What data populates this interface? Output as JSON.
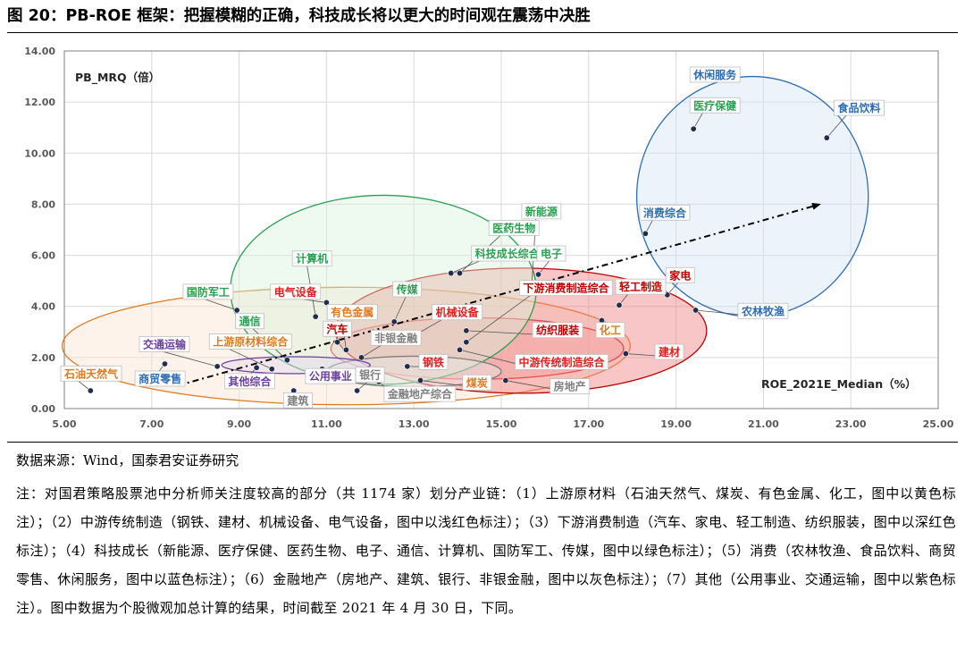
{
  "figure": {
    "title": "图 20：PB-ROE 框架：把握模糊的正确，科技成长将以更大的时间观在震荡中决胜",
    "source": "数据来源：Wind，国泰君安证券研究",
    "note": "注：对国君策略股票池中分析师关注度较高的部分（共 1174 家）划分产业链：（1）上游原材料（石油天然气、煤炭、有色金属、化工，图中以黄色标注）；（2）中游传统制造（钢铁、建材、机械设备、电气设备，图中以浅红色标注）；（3）下游消费制造（汽车、家电、轻工制造、纺织服装，图中以深红色标注）；（4）科技成长（新能源、医疗保健、医药生物、电子、通信、计算机、国防军工、传媒，图中以绿色标注）；（5）消费（农林牧渔、食品饮料、商贸零售、休闲服务，图中以蓝色标注）；（6）金融地产（房地产、建筑、银行、非银金融，图中以灰色标注）；（7）其他（公用事业、交通运输，图中以紫色标注）。图中数据为个股微观加总计算的结果，时间截至 2021 年 4 月 30 日，下同。"
  },
  "colors": {
    "upstream": "#E07A1F",
    "midstream": "#E02020",
    "downstream": "#C00000",
    "tech": "#2AA050",
    "consumer": "#2E6DB4",
    "finance": "#7F7F7F",
    "other": "#6B3FA0",
    "point": "#1F2D4E",
    "grid": "#D9D9D9",
    "axis": "#7F7F7F"
  },
  "chart_data": {
    "type": "scatter",
    "title": "PB-ROE 框架",
    "xlabel": "ROE_2021E_Median（%）",
    "ylabel": "PB_MRQ（倍）",
    "xlim": [
      5,
      25
    ],
    "ylim": [
      0,
      14
    ],
    "xticks": [
      "5.00",
      "7.00",
      "9.00",
      "11.00",
      "13.00",
      "15.00",
      "17.00",
      "19.00",
      "21.00",
      "23.00",
      "25.00"
    ],
    "yticks": [
      "0.00",
      "2.00",
      "4.00",
      "6.00",
      "8.00",
      "10.00",
      "12.00",
      "14.00"
    ],
    "grid": true,
    "trend_arrow": {
      "from": [
        7.6,
        0.9
      ],
      "to": [
        22.3,
        8.0
      ]
    },
    "groups": [
      {
        "name": "上游原材料",
        "color": "#E07A1F",
        "fill": "#FBE5D0",
        "ellipse": {
          "cx": 11.45,
          "cy": 2.45,
          "rx": 6.5,
          "ry": 2.3
        }
      },
      {
        "name": "中游传统制造",
        "color": "#E02020",
        "fill": "#F6B7B7",
        "ellipse": {
          "cx": 14.45,
          "cy": 2.35,
          "rx": 3.35,
          "ry": 1.2
        }
      },
      {
        "name": "下游消费制造",
        "color": "#C00000",
        "fill": "#F08080",
        "ellipse": {
          "cx": 15.45,
          "cy": 3.05,
          "rx": 4.25,
          "ry": 2.45
        }
      },
      {
        "name": "科技成长",
        "color": "#2AA050",
        "fill": "#D9F2DC",
        "ellipse": {
          "cx": 12.3,
          "cy": 4.65,
          "rx": 3.5,
          "ry": 3.7
        }
      },
      {
        "name": "消费",
        "color": "#2E6DB4",
        "fill": "#D6E4F5",
        "ellipse": {
          "cx": 20.75,
          "cy": 8.3,
          "rx": 2.65,
          "ry": 4.7
        }
      },
      {
        "name": "金融地产",
        "color": "#7F7F7F",
        "fill": "#E8E8E8",
        "ellipse": {
          "cx": 13.0,
          "cy": 1.45,
          "rx": 2.0,
          "ry": 0.6
        }
      },
      {
        "name": "其他",
        "color": "#6B3FA0",
        "fill": "#E2D8F0",
        "ellipse": {
          "cx": 10.3,
          "cy": 1.7,
          "rx": 1.7,
          "ry": 0.33
        }
      }
    ],
    "points": [
      {
        "name": "石油天然气",
        "x": 5.6,
        "y": 0.7,
        "group": "上游原材料",
        "label_xy": [
          5.0,
          1.25
        ],
        "color": "#E07A1F",
        "leader": true
      },
      {
        "name": "商贸零售",
        "x": 7.3,
        "y": 1.75,
        "group": "消费",
        "label_xy": [
          6.7,
          1.05
        ],
        "color": "#2E6DB4",
        "leader": true
      },
      {
        "name": "交通运输",
        "x": 8.5,
        "y": 1.65,
        "group": "其他",
        "label_xy": [
          6.8,
          2.4
        ],
        "color": "#6B3FA0",
        "leader": true
      },
      {
        "name": "其他综合",
        "x": 9.4,
        "y": 1.6,
        "group": "其他",
        "label_xy": [
          8.75,
          0.95
        ],
        "color": "#6B3FA0",
        "leader": true
      },
      {
        "name": "上游原材料综合",
        "x": 9.75,
        "y": 1.55,
        "group": "上游原材料",
        "label_xy": [
          8.4,
          2.5
        ],
        "color": "#E07A1F",
        "leader": true
      },
      {
        "name": "通信",
        "x": 10.1,
        "y": 1.9,
        "group": "科技成长",
        "label_xy": [
          9.0,
          3.3
        ],
        "color": "#2AA050",
        "leader": true
      },
      {
        "name": "公用事业",
        "x": 10.9,
        "y": 1.55,
        "group": "其他",
        "label_xy": [
          10.6,
          1.15
        ],
        "color": "#6B3FA0",
        "leader": true
      },
      {
        "name": "建筑",
        "x": 10.25,
        "y": 0.7,
        "group": "金融地产",
        "label_xy": [
          10.1,
          0.2
        ],
        "color": "#7F7F7F",
        "leader": true
      },
      {
        "name": "国防军工",
        "x": 8.95,
        "y": 3.85,
        "group": "科技成长",
        "label_xy": [
          7.8,
          4.45
        ],
        "color": "#2AA050",
        "leader": true
      },
      {
        "name": "计算机",
        "x": 10.75,
        "y": 3.6,
        "group": "科技成长",
        "label_xy": [
          10.3,
          5.75
        ],
        "color": "#2AA050",
        "leader": true
      },
      {
        "name": "电气设备",
        "x": 11.0,
        "y": 4.15,
        "group": "中游传统制造",
        "label_xy": [
          9.8,
          4.45
        ],
        "color": "#E02020",
        "leader": true
      },
      {
        "name": "汽车",
        "x": 11.25,
        "y": 2.6,
        "group": "下游消费制造",
        "label_xy": [
          11.0,
          3.0
        ],
        "color": "#C00000",
        "leader": true
      },
      {
        "name": "有色金属",
        "x": 11.45,
        "y": 2.3,
        "group": "上游原材料",
        "label_xy": [
          11.1,
          3.65
        ],
        "color": "#E07A1F",
        "leader": true
      },
      {
        "name": "非银金融",
        "x": 11.8,
        "y": 2.0,
        "group": "金融地产",
        "label_xy": [
          12.1,
          2.65
        ],
        "color": "#7F7F7F",
        "leader": true
      },
      {
        "name": "银行",
        "x": 11.7,
        "y": 0.7,
        "group": "金融地产",
        "label_xy": [
          11.75,
          1.2
        ],
        "color": "#7F7F7F",
        "leader": true
      },
      {
        "name": "金融地产综合",
        "x": 12.2,
        "y": 1.05,
        "group": "金融地产",
        "label_xy": [
          12.4,
          0.45
        ],
        "color": "#7F7F7F",
        "leader": true
      },
      {
        "name": "传媒",
        "x": 12.55,
        "y": 3.4,
        "group": "科技成长",
        "label_xy": [
          12.6,
          4.55
        ],
        "color": "#2AA050",
        "leader": true
      },
      {
        "name": "钢铁",
        "x": 12.85,
        "y": 1.65,
        "group": "中游传统制造",
        "label_xy": [
          13.2,
          1.7
        ],
        "color": "#E02020",
        "leader": true
      },
      {
        "name": "机械设备",
        "x": 13.05,
        "y": 2.9,
        "group": "中游传统制造",
        "label_xy": [
          13.5,
          3.65
        ],
        "color": "#E02020",
        "leader": true
      },
      {
        "name": "煤炭",
        "x": 13.15,
        "y": 1.1,
        "group": "上游原材料",
        "label_xy": [
          14.2,
          0.9
        ],
        "color": "#E07A1F",
        "leader": true
      },
      {
        "name": "科技成长综合",
        "x": 13.85,
        "y": 5.3,
        "group": "科技成长",
        "label_xy": [
          14.4,
          5.95
        ],
        "color": "#2AA050",
        "leader": true
      },
      {
        "name": "医药生物",
        "x": 14.05,
        "y": 5.3,
        "group": "科技成长",
        "label_xy": [
          14.8,
          6.95
        ],
        "color": "#2AA050",
        "leader": true
      },
      {
        "name": "下游消费制造综合",
        "x": 14.2,
        "y": 2.6,
        "group": "下游消费制造",
        "label_xy": [
          15.5,
          4.6
        ],
        "color": "#C00000",
        "leader": true
      },
      {
        "name": "纺织服装",
        "x": 14.2,
        "y": 3.05,
        "group": "下游消费制造",
        "label_xy": [
          15.8,
          2.95
        ],
        "color": "#C00000",
        "leader": true
      },
      {
        "name": "中游传统制造综合",
        "x": 14.05,
        "y": 2.3,
        "group": "中游传统制造",
        "label_xy": [
          15.4,
          1.7
        ],
        "color": "#E02020",
        "leader": true
      },
      {
        "name": "房地产",
        "x": 15.1,
        "y": 1.1,
        "group": "金融地产",
        "label_xy": [
          16.2,
          0.75
        ],
        "color": "#7F7F7F",
        "leader": true
      },
      {
        "name": "新能源",
        "x": 15.7,
        "y": 4.9,
        "group": "科技成长",
        "label_xy": [
          15.55,
          7.6
        ],
        "color": "#2AA050",
        "leader": true
      },
      {
        "name": "电子",
        "x": 15.85,
        "y": 5.25,
        "group": "科技成长",
        "label_xy": [
          15.9,
          5.95
        ],
        "color": "#2AA050",
        "leader": true
      },
      {
        "name": "化工",
        "x": 17.3,
        "y": 3.45,
        "group": "上游原材料",
        "label_xy": [
          17.25,
          2.95
        ],
        "color": "#E07A1F",
        "leader": true
      },
      {
        "name": "轻工制造",
        "x": 17.7,
        "y": 4.05,
        "group": "下游消费制造",
        "label_xy": [
          17.7,
          4.65
        ],
        "color": "#C00000",
        "leader": true
      },
      {
        "name": "建材",
        "x": 17.85,
        "y": 2.15,
        "group": "中游传统制造",
        "label_xy": [
          18.6,
          2.1
        ],
        "color": "#E02020",
        "leader": true
      },
      {
        "name": "家电",
        "x": 18.8,
        "y": 4.45,
        "group": "下游消费制造",
        "label_xy": [
          18.85,
          5.1
        ],
        "color": "#C00000",
        "leader": true
      },
      {
        "name": "消费综合",
        "x": 18.3,
        "y": 6.85,
        "group": "消费",
        "label_xy": [
          18.25,
          7.55
        ],
        "color": "#2E6DB4",
        "leader": true
      },
      {
        "name": "农林牧渔",
        "x": 19.45,
        "y": 3.85,
        "group": "消费",
        "label_xy": [
          20.5,
          3.7
        ],
        "color": "#2E6DB4",
        "leader": true
      },
      {
        "name": "医疗保健",
        "x": 19.4,
        "y": 10.95,
        "group": "科技成长",
        "label_xy": [
          19.4,
          11.75
        ],
        "color": "#2AA050",
        "leader": true
      },
      {
        "name": "休闲服务",
        "x": 19.4,
        "y": 10.95,
        "group": "消费",
        "label_xy": [
          19.4,
          12.95
        ],
        "color": "#2E6DB4",
        "leader": false
      },
      {
        "name": "食品饮料",
        "x": 22.45,
        "y": 10.6,
        "group": "消费",
        "label_xy": [
          22.7,
          11.65
        ],
        "color": "#2E6DB4",
        "leader": true
      }
    ]
  }
}
